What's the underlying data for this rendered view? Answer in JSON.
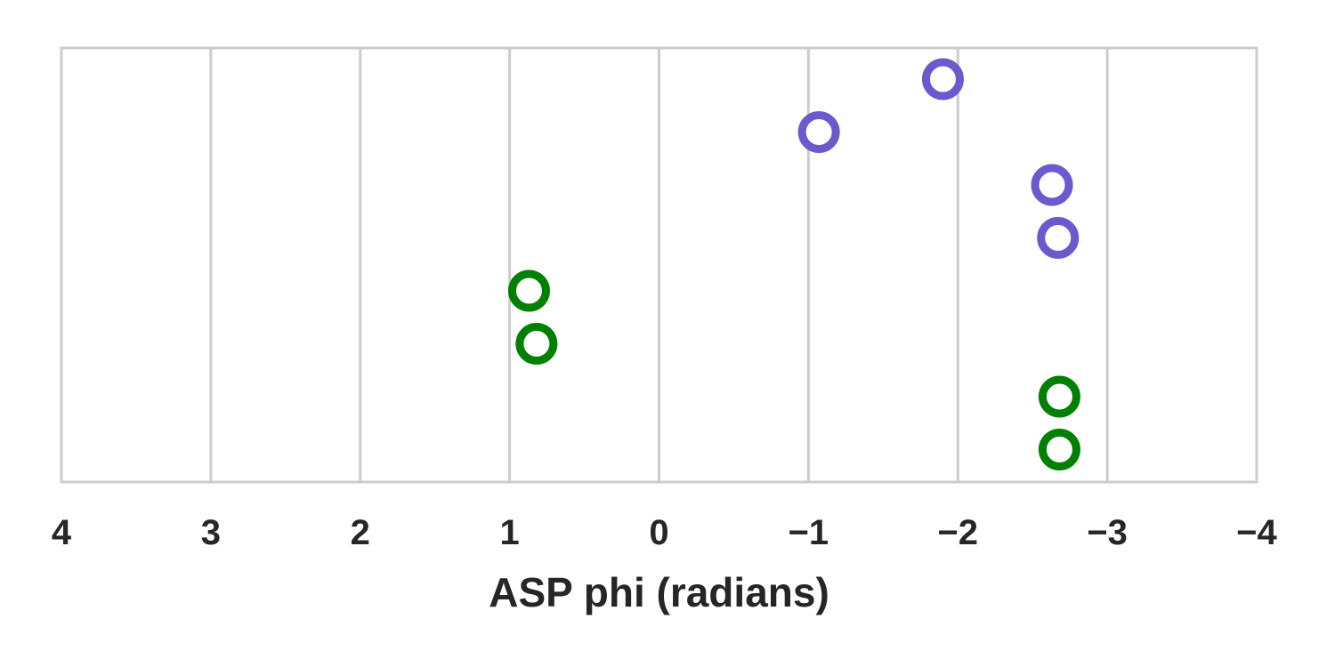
{
  "chart_data": {
    "type": "scatter",
    "title": "",
    "xlabel": "ASP phi (radians)",
    "ylabel": "",
    "xlim": [
      4,
      -4
    ],
    "x_ticks": [
      4,
      3,
      2,
      1,
      0,
      -1,
      -2,
      -3,
      -4
    ],
    "x_tick_labels": [
      "4",
      "3",
      "2",
      "1",
      "0",
      "−1",
      "−2",
      "−3",
      "−4"
    ],
    "y_ticks_shown": false,
    "grid": "vertical",
    "legend": "none",
    "series": [
      {
        "color": "#6a5acd",
        "marker": "open-circle",
        "points": [
          {
            "row": 1,
            "x": -1.9
          },
          {
            "row": 2,
            "x": -1.07
          },
          {
            "row": 3,
            "x": -2.63
          },
          {
            "row": 4,
            "x": -2.67
          }
        ]
      },
      {
        "color": "#008000",
        "marker": "open-circle",
        "points": [
          {
            "row": 5,
            "x": 0.87
          },
          {
            "row": 6,
            "x": 0.82
          },
          {
            "row": 7,
            "x": -2.68
          },
          {
            "row": 8,
            "x": -2.68
          }
        ]
      }
    ],
    "row_count": 8,
    "colors": {
      "grid": "#cccccc",
      "frame": "#cccccc",
      "text": "#262626"
    }
  }
}
